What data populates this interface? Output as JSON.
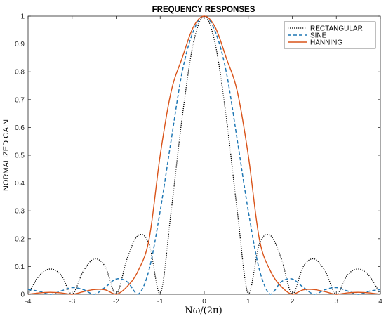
{
  "chart_data": {
    "type": "line",
    "title": "FREQUENCY RESPONSES",
    "xlabel": "Nω/(2π)",
    "ylabel": "NORMALIZED GAIN",
    "xlim": [
      -4,
      4
    ],
    "ylim": [
      0,
      1
    ],
    "xticks": [
      -4,
      -3,
      -2,
      -1,
      0,
      1,
      2,
      3,
      4
    ],
    "yticks": [
      0,
      0.1,
      0.2,
      0.3,
      0.4,
      0.5,
      0.6,
      0.7,
      0.8,
      0.9,
      1
    ],
    "ytick_labels": [
      "0",
      "0.1",
      "0.2",
      "0.3",
      "0.4",
      "0.5",
      "0.6",
      "0.7",
      "0.8",
      "0.9",
      "1"
    ],
    "grid": false,
    "legend_position": "top-right",
    "series": [
      {
        "name": "RECTANGULAR",
        "color": "#000000",
        "style": "dotted",
        "x": [
          -4,
          -3.75,
          -3.5,
          -3.25,
          -3,
          -2.75,
          -2.5,
          -2.25,
          -2,
          -1.75,
          -1.5,
          -1.25,
          -1,
          -0.75,
          -0.5,
          -0.25,
          0,
          0.25,
          0.5,
          0.75,
          1,
          1.25,
          1.5,
          1.75,
          2,
          2.25,
          2.5,
          2.75,
          3,
          3.25,
          3.5,
          3.75,
          4
        ],
        "y": [
          0,
          0.066,
          0.091,
          0.069,
          0,
          0.082,
          0.127,
          0.1,
          0,
          0.129,
          0.212,
          0.18,
          0,
          0.3,
          0.637,
          0.9,
          1,
          0.9,
          0.637,
          0.3,
          0,
          0.18,
          0.212,
          0.129,
          0,
          0.1,
          0.127,
          0.082,
          0,
          0.069,
          0.091,
          0.066,
          0
        ]
      },
      {
        "name": "SINE",
        "color": "#1f77b4",
        "style": "dashed",
        "x": [
          -4,
          -3.75,
          -3.5,
          -3.25,
          -3,
          -2.75,
          -2.5,
          -2.25,
          -2,
          -1.75,
          -1.5,
          -1.25,
          -1,
          -0.75,
          -0.5,
          -0.25,
          0,
          0.25,
          0.5,
          0.75,
          1,
          1.25,
          1.5,
          1.75,
          2,
          2.25,
          2.5,
          2.75,
          3,
          3.25,
          3.5,
          3.75,
          4
        ],
        "y": [
          0.017,
          0.011,
          0,
          0.012,
          0.024,
          0.017,
          0,
          0.025,
          0.055,
          0.045,
          0,
          0.09,
          0.3,
          0.555,
          0.8,
          0.945,
          1,
          0.945,
          0.8,
          0.555,
          0.3,
          0.09,
          0,
          0.045,
          0.055,
          0.025,
          0,
          0.017,
          0.024,
          0.012,
          0,
          0.011,
          0.017
        ]
      },
      {
        "name": "HANNING",
        "color": "#d95319",
        "style": "solid",
        "x": [
          -4,
          -3.75,
          -3.5,
          -3.25,
          -3,
          -2.75,
          -2.5,
          -2.25,
          -2,
          -1.75,
          -1.5,
          -1.25,
          -1,
          -0.75,
          -0.5,
          -0.25,
          0,
          0.25,
          0.5,
          0.75,
          1,
          1.25,
          1.5,
          1.75,
          2,
          2.25,
          2.5,
          2.75,
          3,
          3.25,
          3.5,
          3.75,
          4
        ],
        "y": [
          0,
          0.005,
          0.007,
          0.005,
          0,
          0.009,
          0.017,
          0.016,
          0,
          0.028,
          0.085,
          0.2,
          0.5,
          0.73,
          0.85,
          0.96,
          1,
          0.96,
          0.85,
          0.73,
          0.5,
          0.2,
          0.085,
          0.028,
          0,
          0.016,
          0.017,
          0.009,
          0,
          0.005,
          0.007,
          0.005,
          0
        ]
      }
    ]
  }
}
